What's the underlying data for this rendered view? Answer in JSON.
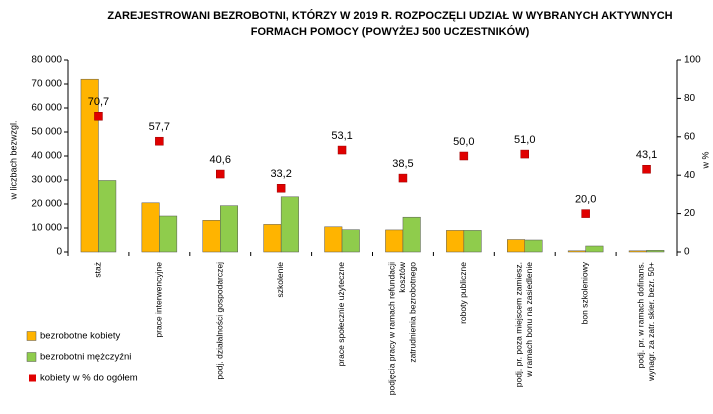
{
  "chart_data": {
    "type": "bar",
    "title": "ZAREJESTROWANI BEZROBOTNI, KTÓRZY W 2019 R. ROZPOCZĘLI UDZIAŁ W WYBRANYCH AKTYWNYCH FORMACH POMOCY (POWYŻEJ 500 UCZESTNIKÓW)",
    "y_label": "w liczbach bezwzgl.",
    "y2_label": "w %",
    "categories": [
      "staż",
      "prace interwencyjne",
      "podj. działalności gospodarczej",
      "szkolenie",
      "prace społecznie użyteczne",
      "podjęcia pracy w ramach refundacji\nkosztów\nzatrudnienia bezrobotnego",
      "roboty publiczne",
      "podj. pr. poza miejscem zamiesz.\nw ramach bonu na zasiedlenie",
      "bon szkoleniowy",
      "podj. pr. w ramach dofinans.\nwynagr. za zatr. skier. bezr. 50+"
    ],
    "series": [
      {
        "name": "bezrobotne kobiety",
        "color": "#ffb400",
        "type": "bar",
        "values": [
          72000,
          20500,
          13200,
          11500,
          10500,
          9200,
          9000,
          5200,
          500,
          500
        ]
      },
      {
        "name": "bezrobotni mężczyźni",
        "color": "#8fcc4c",
        "type": "bar",
        "values": [
          29800,
          15000,
          19300,
          23000,
          9300,
          14500,
          9000,
          5000,
          2500,
          700
        ]
      },
      {
        "name": "kobiety w % do ogółem",
        "color": "#e00000",
        "type": "scatter",
        "axis": "y2",
        "values": [
          70.7,
          57.7,
          40.6,
          33.2,
          53.1,
          38.5,
          50.0,
          51.0,
          20.0,
          43.1
        ],
        "value_labels": [
          "70,7",
          "57,7",
          "40,6",
          "33,2",
          "53,1",
          "38,5",
          "50,0",
          "51,0",
          "20,0",
          "43,1"
        ]
      }
    ],
    "ylim": [
      0,
      80000
    ],
    "yticks": [
      0,
      {
        "value": 10000,
        "label": "10 000"
      },
      {
        "value": 20000,
        "label": "20 000"
      },
      {
        "value": 30000,
        "label": "30 000"
      },
      {
        "value": 40000,
        "label": "40 000"
      },
      {
        "value": 50000,
        "label": "50 000"
      },
      {
        "value": 60000,
        "label": "60 000"
      },
      {
        "value": 70000,
        "label": "70 000"
      },
      {
        "value": 80000,
        "label": "80 000"
      }
    ],
    "y2lim": [
      0,
      100
    ],
    "y2ticks": [
      0,
      20,
      40,
      60,
      80,
      100
    ],
    "legend": "bottom-left"
  }
}
